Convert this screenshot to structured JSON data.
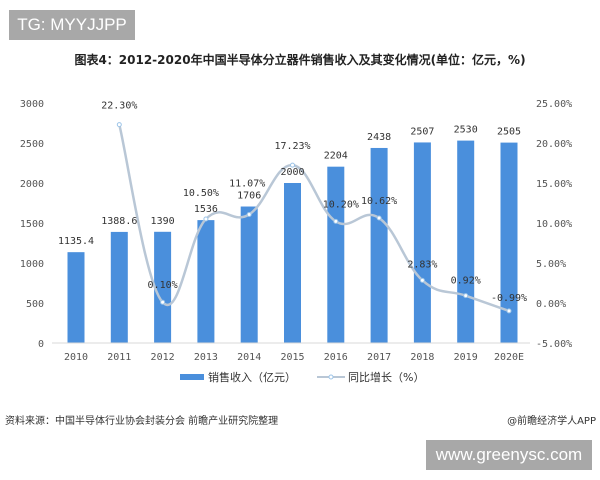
{
  "watermarks": {
    "top_left": "TG: MYYJJPP",
    "bottom_right": "www.greenysc.com"
  },
  "footer": {
    "source": "资料来源：中国半导体行业协会封装分会 前瞻产业研究院整理",
    "credit": "@前瞻经济学人APP"
  },
  "colors": {
    "bar": "#4a8fdc",
    "line": "#b9c7d6",
    "line_marker": "#9cc4e8"
  },
  "chart_data": {
    "type": "bar+line",
    "title": "图表4：2012-2020年中国半导体分立器件销售收入及其变化情况(单位：亿元，%)",
    "categories": [
      "2010",
      "2011",
      "2012",
      "2013",
      "2014",
      "2015",
      "2016",
      "2017",
      "2018",
      "2019",
      "2020E"
    ],
    "series": [
      {
        "name": "销售收入（亿元）",
        "type": "bar",
        "axis": "left",
        "values": [
          1135.4,
          1388.6,
          1390,
          1536,
          1706,
          2000,
          2204,
          2438,
          2507,
          2530,
          2505
        ],
        "labels": [
          "1135.4",
          "1388.6",
          "1390",
          "1536",
          "1706",
          "2000",
          "2204",
          "2438",
          "2507",
          "2530",
          "2505"
        ]
      },
      {
        "name": "同比增长（%）",
        "type": "line",
        "axis": "right",
        "smooth": true,
        "values": [
          null,
          22.3,
          0.1,
          10.5,
          11.07,
          17.23,
          10.2,
          10.62,
          2.83,
          0.92,
          -0.99
        ],
        "labels": [
          "",
          "22.30%",
          "0.10%",
          "10.50%",
          "11.07%",
          "17.23%",
          "10.20%",
          "10.62%",
          "2.83%",
          "0.92%",
          "-0.99%"
        ]
      }
    ],
    "y_left": {
      "range": [
        0,
        3000
      ],
      "ticks": [
        "0",
        "500",
        "1000",
        "1500",
        "2000",
        "2500",
        "3000"
      ]
    },
    "y_right": {
      "range": [
        -5,
        25
      ],
      "ticks": [
        "-5.00%",
        "0.00%",
        "5.00%",
        "10.00%",
        "15.00%",
        "20.00%",
        "25.00%"
      ]
    },
    "grid": false,
    "legend": "bottom"
  }
}
